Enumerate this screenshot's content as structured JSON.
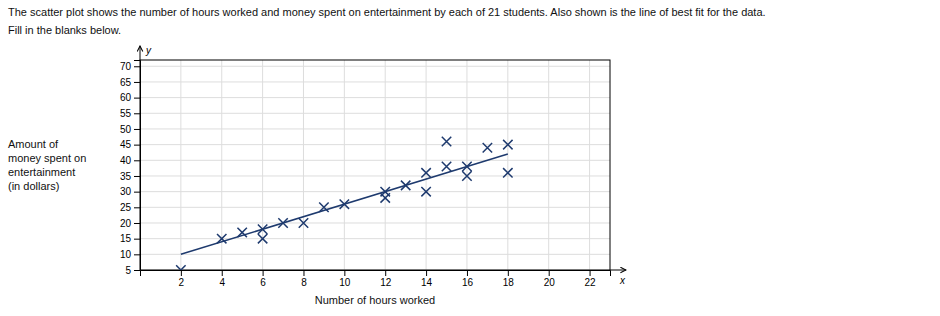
{
  "chart_data": {
    "type": "scatter",
    "title": "The scatter plot shows the number of hours worked and money spent on entertainment by each of 21 students. Also shown is the line of best fit for the data.",
    "subtitle": "Fill in the blanks below.",
    "xlabel": "Number of hours worked",
    "ylabel": [
      "Amount of",
      "money spent on",
      "entertainment",
      "(in dollars)"
    ],
    "annotations": [
      "y",
      "x"
    ],
    "xlim": [
      0,
      23
    ],
    "ylim": [
      5,
      72
    ],
    "xticks": [
      2,
      4,
      6,
      8,
      10,
      12,
      14,
      16,
      18,
      20,
      22
    ],
    "yticks": [
      5,
      10,
      15,
      20,
      25,
      30,
      35,
      40,
      45,
      50,
      55,
      60,
      65,
      70
    ],
    "grid": true,
    "series": [
      {
        "type": "scatter",
        "marker": "x",
        "color": "#1e3a6e",
        "x": [
          2,
          4,
          5,
          6,
          6,
          7,
          8,
          9,
          10,
          12,
          12,
          13,
          14,
          14,
          15,
          15,
          16,
          16,
          17,
          18,
          18
        ],
        "values": [
          5,
          15,
          17,
          15,
          18,
          20,
          20,
          25,
          26,
          28,
          30,
          32,
          30,
          36,
          38,
          46,
          35,
          38,
          44,
          45,
          36
        ]
      },
      {
        "type": "line",
        "color": "#1e3a6e",
        "x": [
          2,
          18
        ],
        "values": [
          10,
          42
        ]
      }
    ]
  }
}
